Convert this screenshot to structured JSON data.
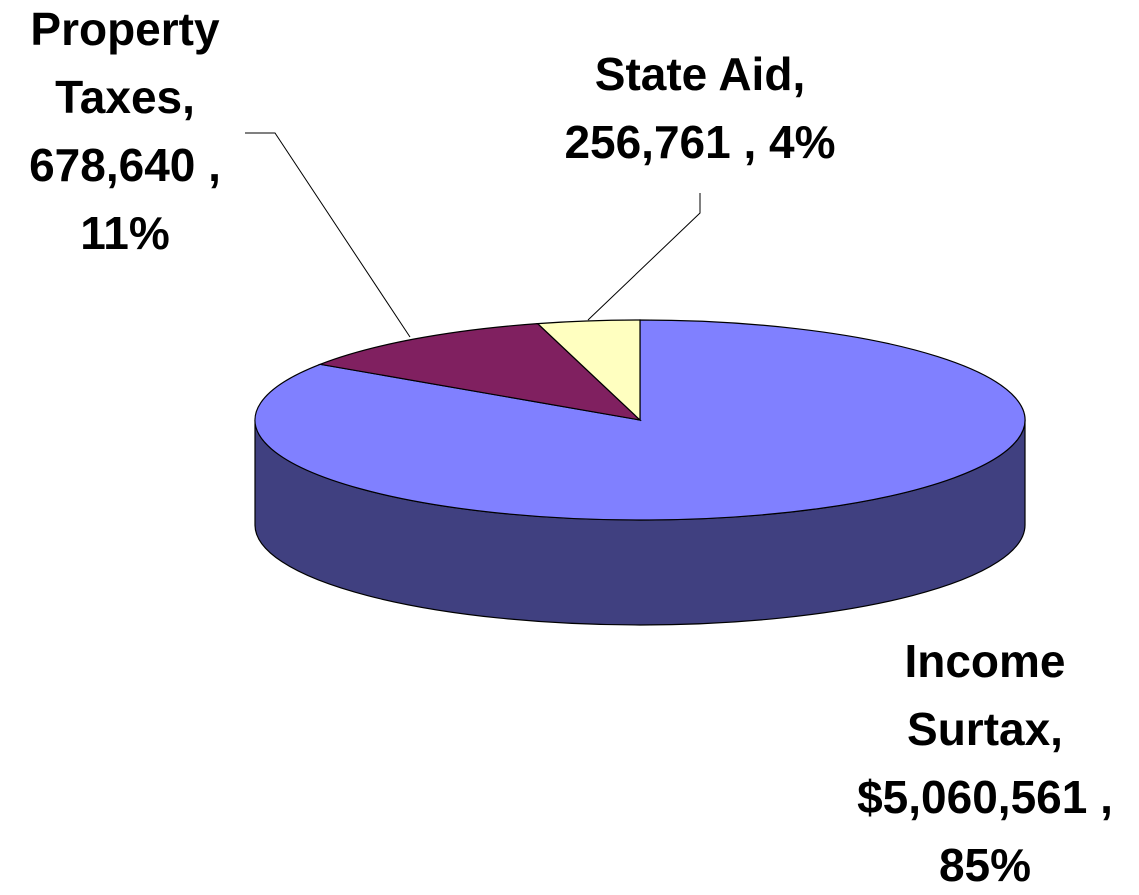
{
  "chart_data": {
    "type": "pie3d",
    "categories": [
      "Income Surtax",
      "Property Taxes",
      "State Aid"
    ],
    "values": [
      5060561,
      678640,
      256761
    ],
    "labels": [
      [
        "Income",
        "Surtax,",
        "$5,060,561 ,",
        "85%"
      ],
      [
        "Property",
        "Taxes,",
        "678,640 ,",
        "11%"
      ],
      [
        "State Aid,",
        "256,761 , 4%"
      ]
    ],
    "colors": [
      "#8080ff",
      "#802060",
      "#ffffc0"
    ],
    "side_colors": [
      "#404080",
      "#401030",
      "#808060"
    ]
  }
}
